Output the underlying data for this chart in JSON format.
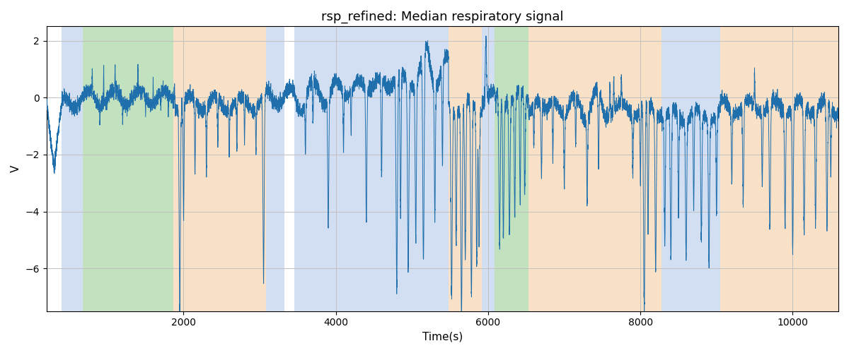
{
  "title": "rsp_refined: Median respiratory signal",
  "xlabel": "Time(s)",
  "ylabel": "V",
  "xlim": [
    200,
    10600
  ],
  "ylim": [
    -7.5,
    2.5
  ],
  "line_color": "#1f6fad",
  "line_width": 0.7,
  "background_color": "#ffffff",
  "grid_color": "#c0c0c0",
  "bands": [
    {
      "xmin": 400,
      "xmax": 680,
      "color": "#aec6e8",
      "alpha": 0.55
    },
    {
      "xmin": 680,
      "xmax": 1870,
      "color": "#90c98a",
      "alpha": 0.55
    },
    {
      "xmin": 1870,
      "xmax": 3080,
      "color": "#f5c99a",
      "alpha": 0.55
    },
    {
      "xmin": 3080,
      "xmax": 3320,
      "color": "#aec6e8",
      "alpha": 0.55
    },
    {
      "xmin": 3450,
      "xmax": 5480,
      "color": "#aec6e8",
      "alpha": 0.55
    },
    {
      "xmin": 5480,
      "xmax": 5920,
      "color": "#f5c99a",
      "alpha": 0.55
    },
    {
      "xmin": 5920,
      "xmax": 6080,
      "color": "#aec6e8",
      "alpha": 0.55
    },
    {
      "xmin": 6080,
      "xmax": 6530,
      "color": "#90c98a",
      "alpha": 0.55
    },
    {
      "xmin": 6530,
      "xmax": 7550,
      "color": "#f5c99a",
      "alpha": 0.55
    },
    {
      "xmin": 7550,
      "xmax": 8280,
      "color": "#f5c99a",
      "alpha": 0.55
    },
    {
      "xmin": 8280,
      "xmax": 9050,
      "color": "#aec6e8",
      "alpha": 0.55
    },
    {
      "xmin": 9050,
      "xmax": 10600,
      "color": "#f5c99a",
      "alpha": 0.55
    }
  ],
  "title_fontsize": 13,
  "tick_fontsize": 10,
  "label_fontsize": 11
}
